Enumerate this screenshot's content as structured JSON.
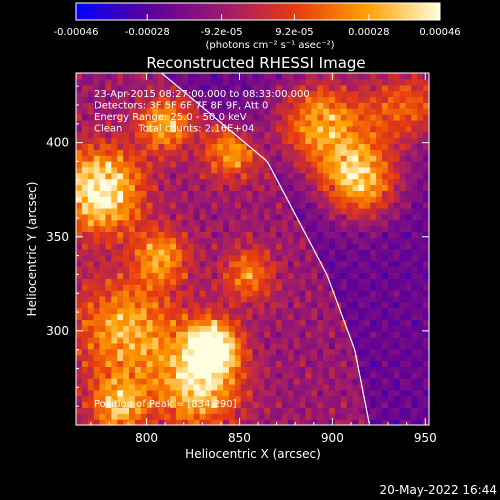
{
  "chart_data": {
    "type": "heatmap",
    "title": "Reconstructed RHESSI Image",
    "xlabel": "Heliocentric X (arcsec)",
    "ylabel": "Heliocentric Y (arcsec)",
    "xlim": [
      762,
      952
    ],
    "ylim": [
      250,
      437
    ],
    "x_ticks": [
      "800",
      "850",
      "900",
      "950"
    ],
    "x_tick_values": [
      800,
      850,
      900,
      950
    ],
    "y_ticks": [
      "300",
      "350",
      "400"
    ],
    "y_tick_values": [
      300,
      350,
      400
    ],
    "colorbar": {
      "tick_labels": [
        "-0.00046",
        "-0.00028",
        "-9.2e-05",
        "9.2e-05",
        "0.00028",
        "0.00046"
      ],
      "tick_values": [
        -0.00046,
        -0.00028,
        -9.2e-05,
        9.2e-05,
        0.00028,
        0.00046
      ],
      "unit_label": "(photons cm⁻² s⁻¹ asec⁻²)",
      "colors": [
        "#0000ff",
        "#5a0099",
        "#9b1a70",
        "#e63a10",
        "#ffa000",
        "#ffffe0"
      ]
    },
    "annotations": [
      "23-Apr-2015 08:27:00.000 to 08:33:00.000",
      "Detectors: 3F 5F 6F 7F 8F 9F, Att 0",
      "Energy Range: 25.0 - 50.0 keV",
      "Clean     Total counts: 2.16E+04"
    ],
    "peak_label": "Position of Peak = [834,290]",
    "peak": [
      834,
      290
    ],
    "limb_curve": [
      [
        808,
        437
      ],
      [
        865,
        390
      ],
      [
        897,
        330
      ],
      [
        912,
        290
      ],
      [
        920,
        250
      ]
    ],
    "limb_color": "#ffffff"
  },
  "timestamp": "20-May-2022 16:44"
}
